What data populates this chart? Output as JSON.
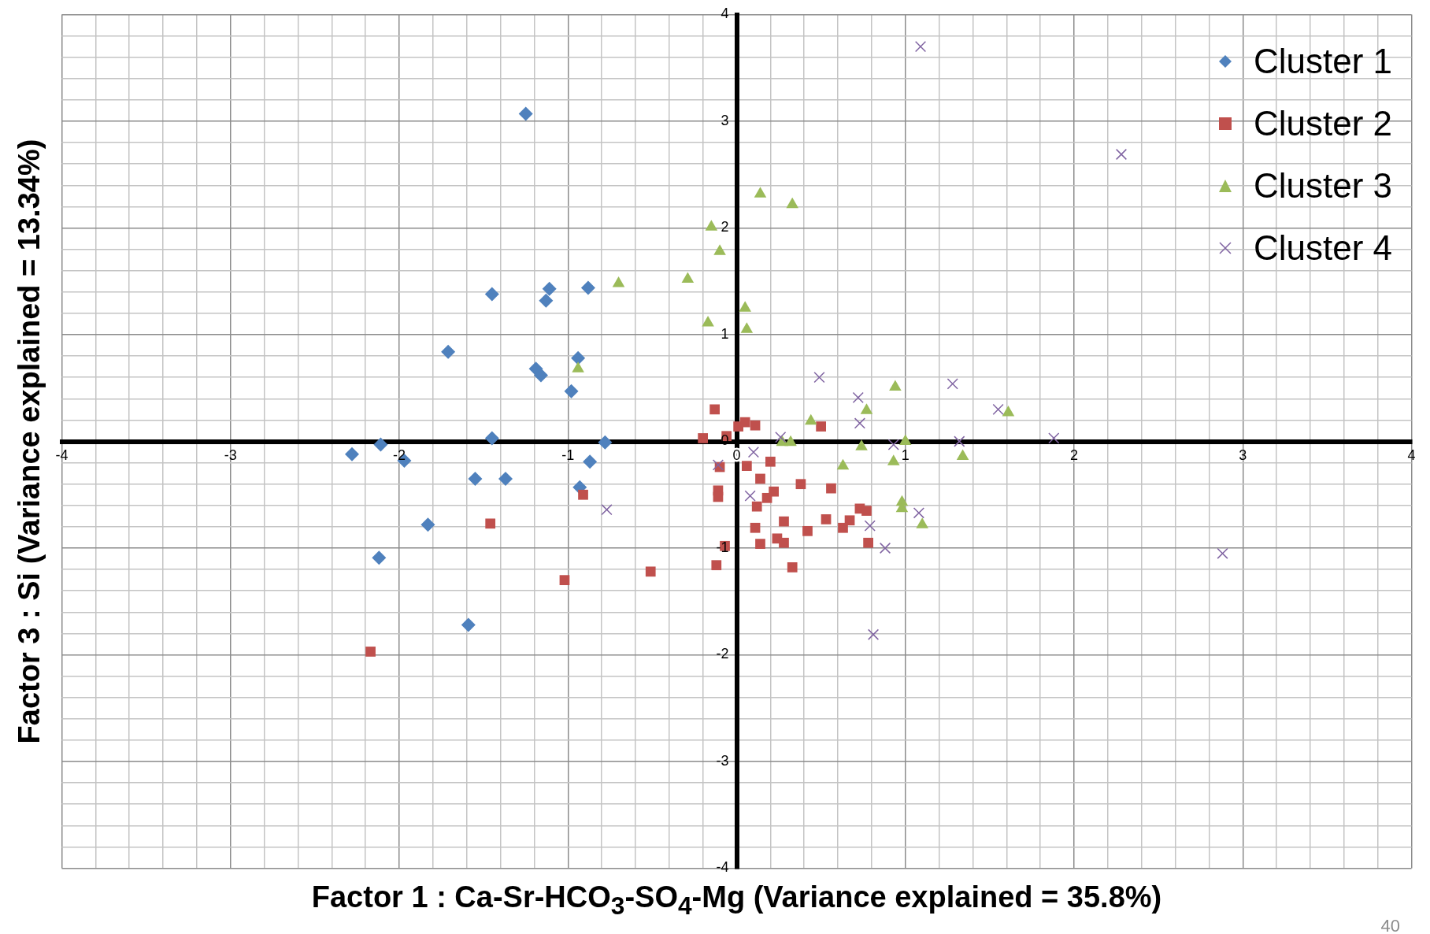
{
  "chart_data": {
    "type": "scatter",
    "xlabel": "Factor 1 : Ca-Sr-HCO$_{3}$-SO$_{4}$-Mg (Variance explained = 35.8%)",
    "ylabel": "Factor 3 : Si (Variance explained = 13.34%)",
    "xlim": [
      -4,
      4
    ],
    "ylim": [
      -4,
      4
    ],
    "xticks": [
      -4,
      {
        "value": -3.8,
        "label": null
      },
      {
        "value": -3.6,
        "label": null
      },
      {
        "value": -3.4,
        "label": null
      },
      {
        "value": -3.2,
        "label": null
      },
      -3,
      {
        "value": -2.8,
        "label": null
      },
      {
        "value": -2.6,
        "label": null
      },
      {
        "value": -2.4,
        "label": null
      },
      {
        "value": -2.2,
        "label": null
      },
      -2,
      {
        "value": -1.8,
        "label": null
      },
      {
        "value": -1.6,
        "label": null
      },
      {
        "value": -1.4,
        "label": null
      },
      {
        "value": -1.2,
        "label": null
      },
      -1,
      {
        "value": -0.8,
        "label": null
      },
      {
        "value": -0.6,
        "label": null
      },
      {
        "value": -0.4,
        "label": null
      },
      {
        "value": -0.2,
        "label": null
      },
      0,
      {
        "value": 0.2,
        "label": null
      },
      {
        "value": 0.4,
        "label": null
      },
      {
        "value": 0.6,
        "label": null
      },
      {
        "value": 0.8,
        "label": null
      },
      1,
      {
        "value": 1.2,
        "label": null
      },
      {
        "value": 1.4,
        "label": null
      },
      {
        "value": 1.6,
        "label": null
      },
      {
        "value": 1.8,
        "label": null
      },
      2,
      {
        "value": 2.2,
        "label": null
      },
      {
        "value": 2.4,
        "label": null
      },
      {
        "value": 2.6,
        "label": null
      },
      {
        "value": 2.8,
        "label": null
      },
      3,
      {
        "value": 3.2,
        "label": null
      },
      {
        "value": 3.4,
        "label": null
      },
      {
        "value": 3.6,
        "label": null
      },
      {
        "value": 3.8,
        "label": null
      },
      4
    ],
    "yticks": [
      -4,
      {
        "value": -3.8,
        "label": null
      },
      {
        "value": -3.6,
        "label": null
      },
      {
        "value": -3.4,
        "label": null
      },
      {
        "value": -3.2,
        "label": null
      },
      -3,
      {
        "value": -2.8,
        "label": null
      },
      {
        "value": -2.6,
        "label": null
      },
      {
        "value": -2.4,
        "label": null
      },
      {
        "value": -2.2,
        "label": null
      },
      -2,
      {
        "value": -1.8,
        "label": null
      },
      {
        "value": -1.6,
        "label": null
      },
      {
        "value": -1.4,
        "label": null
      },
      {
        "value": -1.2,
        "label": null
      },
      -1,
      {
        "value": -0.8,
        "label": null
      },
      {
        "value": -0.6,
        "label": null
      },
      {
        "value": -0.4,
        "label": null
      },
      {
        "value": -0.2,
        "label": null
      },
      0,
      {
        "value": 0.2,
        "label": null
      },
      {
        "value": 0.4,
        "label": null
      },
      {
        "value": 0.6,
        "label": null
      },
      {
        "value": 0.8,
        "label": null
      },
      1,
      {
        "value": 1.2,
        "label": null
      },
      {
        "value": 1.4,
        "label": null
      },
      {
        "value": 1.6,
        "label": null
      },
      {
        "value": 1.8,
        "label": null
      },
      2,
      {
        "value": 2.2,
        "label": null
      },
      {
        "value": 2.4,
        "label": null
      },
      {
        "value": 2.6,
        "label": null
      },
      {
        "value": 2.8,
        "label": null
      },
      3,
      {
        "value": 3.2,
        "label": null
      },
      {
        "value": 3.4,
        "label": null
      },
      {
        "value": 3.6,
        "label": null
      },
      {
        "value": 3.8,
        "label": null
      },
      4
    ],
    "grid": true,
    "legend": "top right",
    "annotations": [
      "40"
    ],
    "series": [
      {
        "name": "Cluster 1",
        "color": "#4f81bd",
        "marker": "diamond",
        "x": [
          -1.25,
          -1.45,
          -1.11,
          -1.13,
          -0.88,
          -1.71,
          -0.94,
          -1.19,
          -1.16,
          -0.98,
          -1.45,
          -0.78,
          -2.28,
          -2.11,
          -1.97,
          -1.55,
          -1.37,
          -0.87,
          -0.93,
          -1.83,
          -2.12,
          -1.59
        ],
        "values": [
          3.07,
          1.38,
          1.43,
          1.32,
          1.44,
          0.84,
          0.78,
          0.68,
          0.62,
          0.47,
          0.03,
          -0.01,
          -0.12,
          -0.03,
          -0.18,
          -0.35,
          -0.35,
          -0.19,
          -0.43,
          -0.78,
          -1.09,
          -1.72
        ]
      },
      {
        "name": "Cluster 2",
        "color": "#c0504d",
        "marker": "square",
        "x": [
          -0.13,
          -0.2,
          -0.06,
          0.01,
          0.05,
          0.11,
          0.5,
          -0.1,
          0.06,
          0.2,
          0.14,
          -0.11,
          -0.11,
          0.22,
          0.18,
          0.38,
          0.56,
          0.12,
          -0.91,
          -1.46,
          0.28,
          0.53,
          0.67,
          0.73,
          0.77,
          0.63,
          0.42,
          0.11,
          0.24,
          0.28,
          0.14,
          -0.07,
          0.78,
          -0.12,
          0.33,
          -0.51,
          -1.02,
          -2.17
        ],
        "values": [
          0.3,
          0.03,
          0.05,
          0.14,
          0.18,
          0.15,
          0.14,
          -0.24,
          -0.23,
          -0.19,
          -0.35,
          -0.46,
          -0.52,
          -0.47,
          -0.53,
          -0.4,
          -0.44,
          -0.61,
          -0.5,
          -0.77,
          -0.75,
          -0.73,
          -0.74,
          -0.63,
          -0.65,
          -0.81,
          -0.84,
          -0.81,
          -0.91,
          -0.95,
          -0.96,
          -0.98,
          -0.95,
          -1.16,
          -1.18,
          -1.22,
          -1.3,
          -1.97
        ]
      },
      {
        "name": "Cluster 3",
        "color": "#9bbb59",
        "marker": "triangle",
        "x": [
          0.14,
          0.33,
          -0.15,
          -0.1,
          -0.7,
          -0.29,
          0.05,
          -0.17,
          0.06,
          -0.94,
          0.94,
          0.77,
          1.61,
          0.44,
          0.27,
          0.32,
          1.0,
          0.74,
          1.34,
          0.93,
          0.63,
          0.98,
          0.98,
          1.1
        ],
        "values": [
          2.32,
          2.22,
          2.01,
          1.78,
          1.48,
          1.52,
          1.25,
          1.11,
          1.05,
          0.68,
          0.51,
          0.29,
          0.27,
          0.19,
          -0.01,
          -0.01,
          0.0,
          -0.05,
          -0.14,
          -0.19,
          -0.23,
          -0.57,
          -0.63,
          -0.78
        ]
      },
      {
        "name": "Cluster 4",
        "color": "#8064a2",
        "marker": "cross",
        "x": [
          1.09,
          2.28,
          0.49,
          1.28,
          0.72,
          1.55,
          0.73,
          0.26,
          1.88,
          1.32,
          0.93,
          0.1,
          -0.11,
          0.08,
          -0.77,
          1.08,
          0.79,
          0.88,
          2.88,
          0.81
        ],
        "values": [
          3.7,
          2.69,
          0.6,
          0.54,
          0.41,
          0.3,
          0.17,
          0.04,
          0.03,
          0.0,
          -0.03,
          -0.1,
          -0.22,
          -0.51,
          -0.64,
          -0.67,
          -0.79,
          -1.0,
          -1.05,
          -1.81
        ]
      }
    ]
  }
}
